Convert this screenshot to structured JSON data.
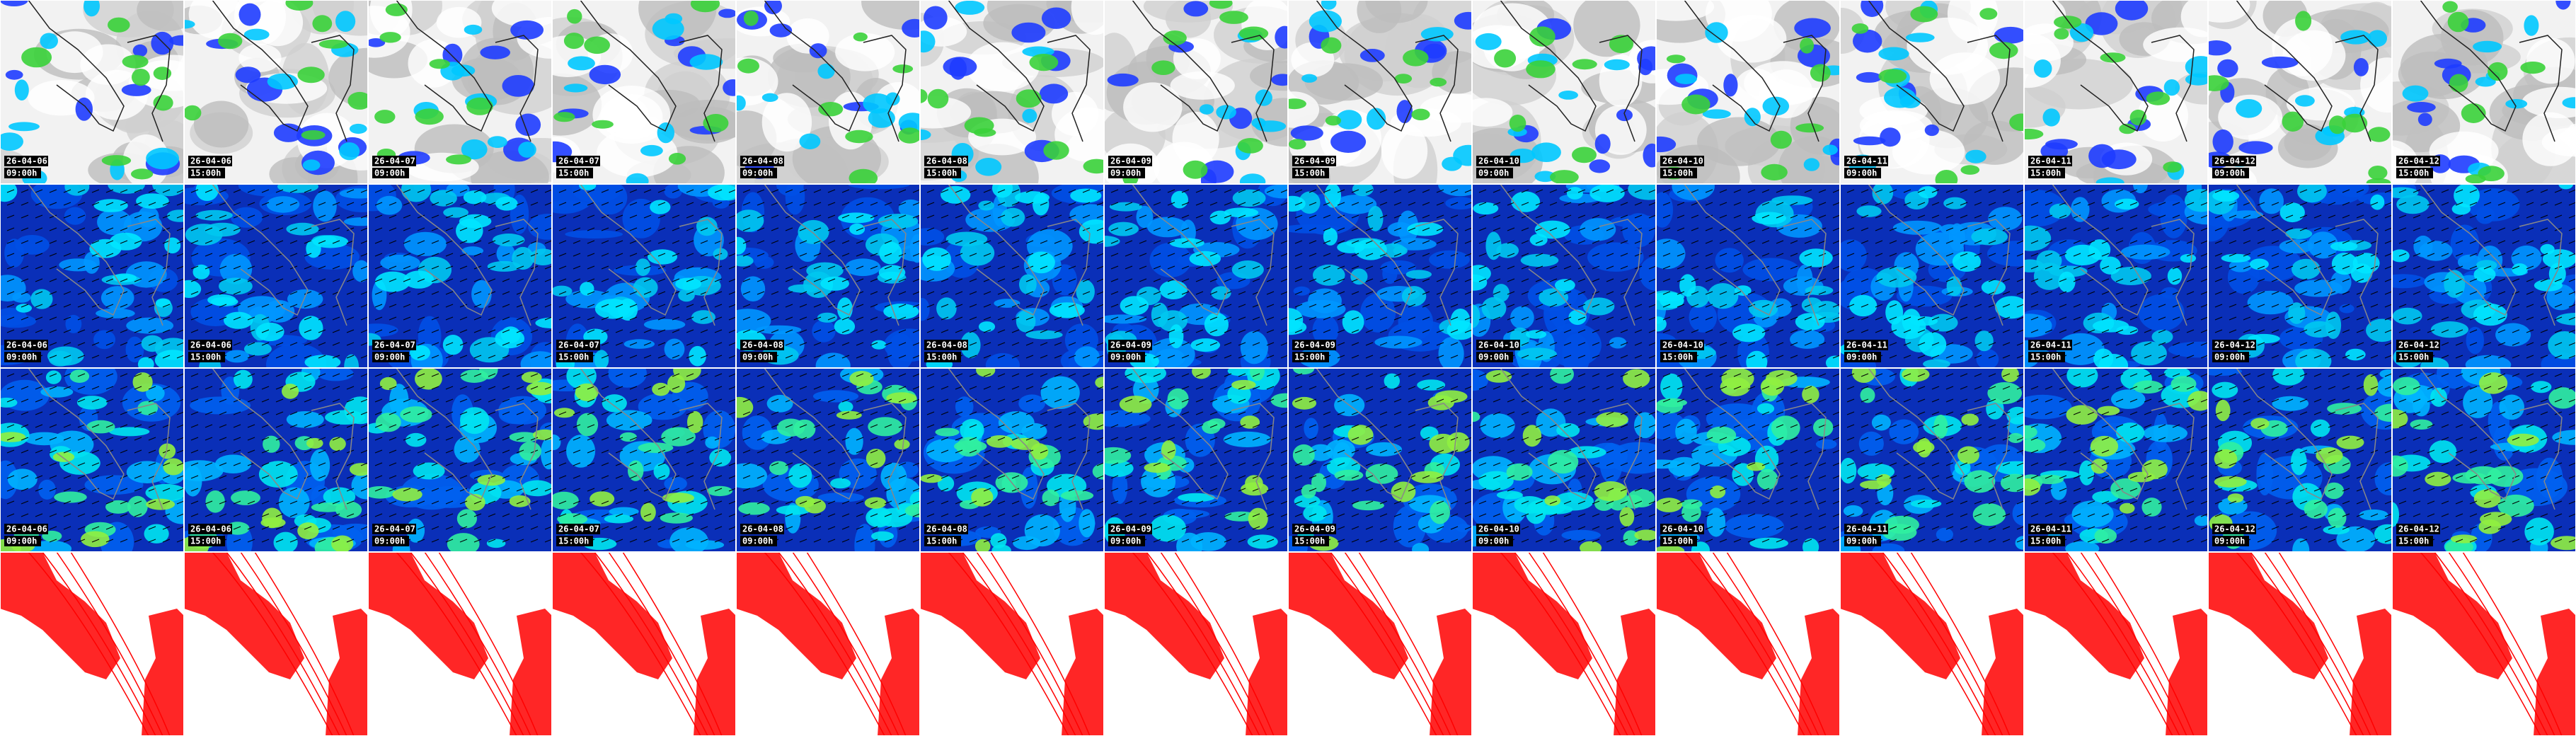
{
  "rows": [
    {
      "tiles": [
        {
          "date": "26-04-06",
          "time": "09:00h"
        },
        {
          "date": "26-04-06",
          "time": "15:00h"
        },
        {
          "date": "26-04-07",
          "time": "09:00h"
        },
        {
          "date": "26-04-07",
          "time": "15:00h"
        },
        {
          "date": "26-04-08",
          "time": "09:00h"
        },
        {
          "date": "26-04-08",
          "time": "15:00h"
        },
        {
          "date": "26-04-09",
          "time": "09:00h"
        },
        {
          "date": "26-04-09",
          "time": "15:00h"
        },
        {
          "date": "26-04-10",
          "time": "09:00h"
        },
        {
          "date": "26-04-10",
          "time": "15:00h"
        },
        {
          "date": "26-04-11",
          "time": "09:00h"
        },
        {
          "date": "26-04-11",
          "time": "15:00h"
        },
        {
          "date": "26-04-12",
          "time": "09:00h"
        },
        {
          "date": "26-04-12",
          "time": "15:00h"
        }
      ]
    },
    {
      "tiles": [
        {
          "date": "26-04-06",
          "time": "09:00h"
        },
        {
          "date": "26-04-06",
          "time": "15:00h"
        },
        {
          "date": "26-04-07",
          "time": "09:00h"
        },
        {
          "date": "26-04-07",
          "time": "15:00h"
        },
        {
          "date": "26-04-08",
          "time": "09:00h"
        },
        {
          "date": "26-04-08",
          "time": "15:00h"
        },
        {
          "date": "26-04-09",
          "time": "09:00h"
        },
        {
          "date": "26-04-09",
          "time": "15:00h"
        },
        {
          "date": "26-04-10",
          "time": "09:00h"
        },
        {
          "date": "26-04-10",
          "time": "15:00h"
        },
        {
          "date": "26-04-11",
          "time": "09:00h"
        },
        {
          "date": "26-04-11",
          "time": "15:00h"
        },
        {
          "date": "26-04-12",
          "time": "09:00h"
        },
        {
          "date": "26-04-12",
          "time": "15:00h"
        }
      ]
    },
    {
      "tiles": [
        {
          "date": "26-04-06",
          "time": "09:00h"
        },
        {
          "date": "26-04-06",
          "time": "15:00h"
        },
        {
          "date": "26-04-07",
          "time": "09:00h"
        },
        {
          "date": "26-04-07",
          "time": "15:00h"
        },
        {
          "date": "26-04-08",
          "time": "09:00h"
        },
        {
          "date": "26-04-08",
          "time": "15:00h"
        },
        {
          "date": "26-04-09",
          "time": "09:00h"
        },
        {
          "date": "26-04-09",
          "time": "15:00h"
        },
        {
          "date": "26-04-10",
          "time": "09:00h"
        },
        {
          "date": "26-04-10",
          "time": "15:00h"
        },
        {
          "date": "26-04-11",
          "time": "09:00h"
        },
        {
          "date": "26-04-11",
          "time": "15:00h"
        },
        {
          "date": "26-04-12",
          "time": "09:00h"
        },
        {
          "date": "26-04-12",
          "time": "15:00h"
        }
      ]
    },
    {
      "tiles": [
        {},
        {},
        {},
        {},
        {},
        {},
        {},
        {},
        {},
        {},
        {},
        {},
        {},
        {}
      ]
    }
  ]
}
